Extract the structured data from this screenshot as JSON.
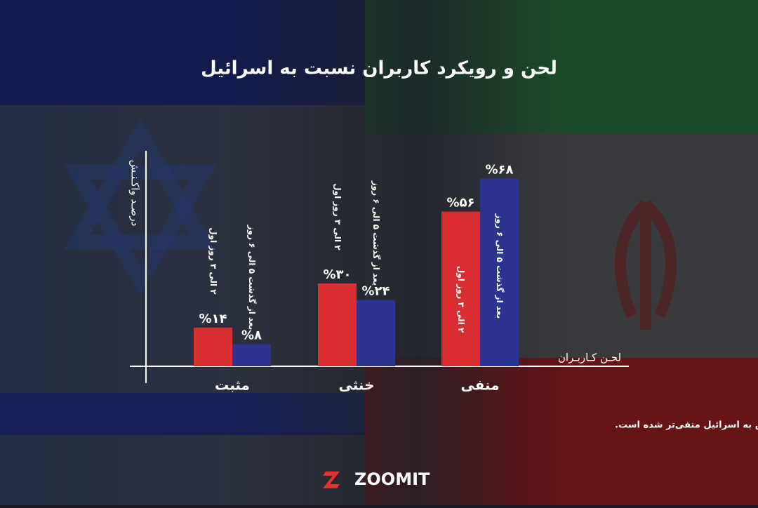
{
  "chart_data": {
    "type": "bar",
    "title": "لحن و رویکرد کاربران نسبت به اسرائیل",
    "y_label": "درصـد واکـنـش",
    "x_label": "لحـن کـاربـران",
    "categories": [
      "مثبت",
      "خنثی",
      "منفی"
    ],
    "series": [
      {
        "name": "۲ الی ۳ روز اول",
        "color": "#d92f33",
        "values": [
          14,
          30,
          56
        ],
        "value_labels": [
          "%۱۴",
          "%۳۰",
          "%۵۶"
        ]
      },
      {
        "name": "بعد از گذشت ۵ الی ۶ روز",
        "color": "#2b3590",
        "values": [
          8,
          24,
          68
        ],
        "value_labels": [
          "%۸",
          "%۲۴",
          "%۶۸"
        ]
      }
    ],
    "ylim": [
      0,
      78
    ],
    "note": "آنالیز بار معنایی کلمات در توییتر نشان می‌دهد: چند روز پس از شروع جنگ، نگاه کاربران ایکس به اسرائیل منفی‌تر شده است.",
    "logo": "ZOOMIT"
  }
}
